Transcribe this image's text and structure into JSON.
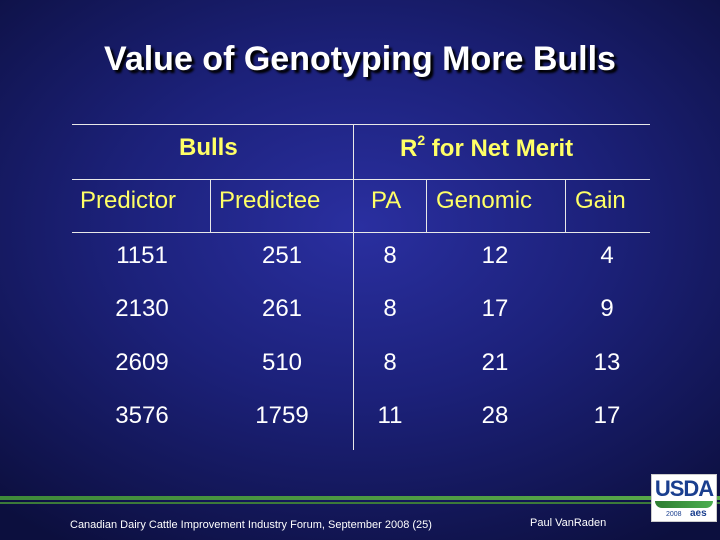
{
  "title": "Value of Genotyping More Bulls",
  "table": {
    "group_headers": {
      "bulls": "Bulls",
      "r2_prefix": "R",
      "r2_sup": "2",
      "r2_suffix": " for Net Merit"
    },
    "columns": [
      "Predictor",
      "Predictee",
      "PA",
      "Genomic",
      "Gain"
    ],
    "rows": [
      [
        "1151",
        "251",
        "8",
        "12",
        "4"
      ],
      [
        "2130",
        "261",
        "8",
        "17",
        "9"
      ],
      [
        "2609",
        "510",
        "8",
        "21",
        "13"
      ],
      [
        "3576",
        "1759",
        "11",
        "28",
        "17"
      ]
    ]
  },
  "footer": {
    "left": "Canadian Dairy Cattle Improvement Industry Forum, September 2008 (25)",
    "right": "Paul VanRaden",
    "logo_text": "USDA",
    "logo_year": "2008",
    "logo_mark": "aes"
  },
  "colors": {
    "header": "#ffff66",
    "body_text": "#ffffff",
    "rule": "#e8e8e8"
  }
}
